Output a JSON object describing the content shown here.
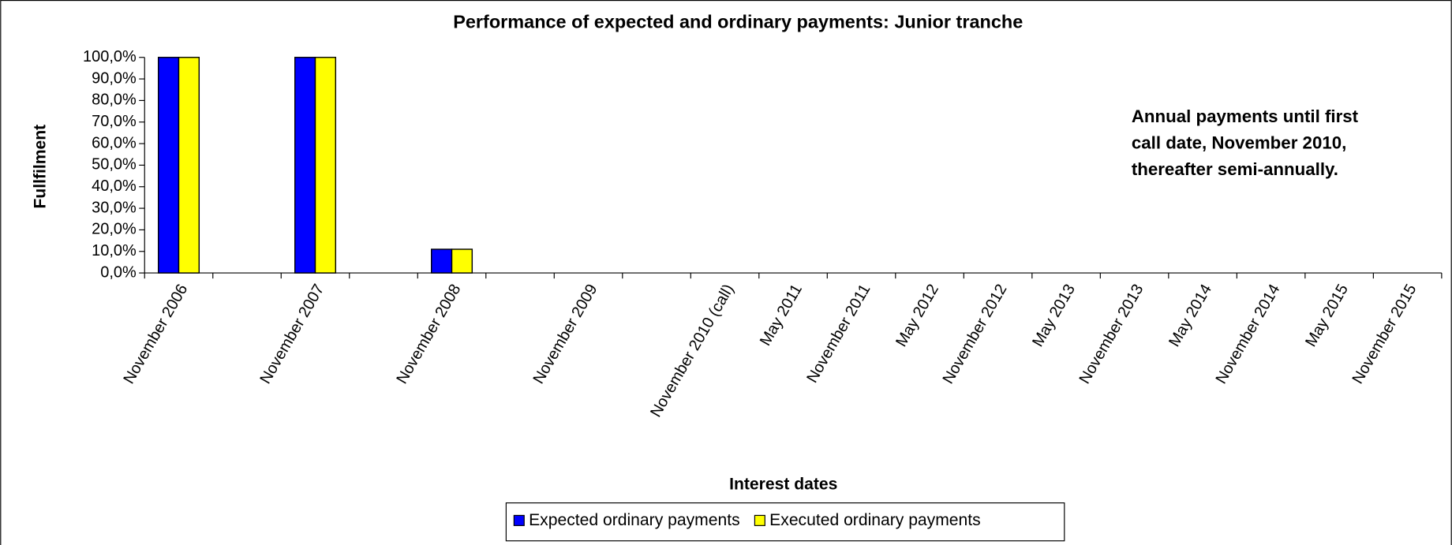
{
  "chart_data": {
    "type": "bar",
    "title": "Performance of expected and ordinary payments: Junior tranche",
    "x_label": "Interest dates",
    "y_label": "Fullfilment",
    "annotation": [
      "Annual payments until first",
      "call date, November 2010,",
      "thereafter semi-annually."
    ],
    "categories": [
      "November 2006",
      null,
      "November 2007",
      null,
      "November 2008",
      null,
      "November 2009",
      null,
      "November 2010 (call)",
      "May 2011",
      "November 2011",
      "May 2012",
      "November 2012",
      "May 2013",
      "November 2013",
      "May 2014",
      "November 2014",
      "May 2015",
      "November 2015"
    ],
    "series": [
      {
        "name": "Expected ordinary payments",
        "color": "#0000ff",
        "values": [
          100,
          null,
          100,
          null,
          11,
          null,
          null,
          null,
          null,
          null,
          null,
          null,
          null,
          null,
          null,
          null,
          null,
          null,
          null
        ]
      },
      {
        "name": "Executed ordinary payments",
        "color": "#ffff00",
        "values": [
          100,
          null,
          100,
          null,
          11,
          null,
          null,
          null,
          null,
          null,
          null,
          null,
          null,
          null,
          null,
          null,
          null,
          null,
          null
        ]
      }
    ],
    "ylim": [
      0,
      100
    ],
    "yticks": [
      {
        "value": 0,
        "label": "0,0%"
      },
      {
        "value": 10,
        "label": "10,0%"
      },
      {
        "value": 20,
        "label": "20,0%"
      },
      {
        "value": 30,
        "label": "30,0%"
      },
      {
        "value": 40,
        "label": "40,0%"
      },
      {
        "value": 50,
        "label": "50,0%"
      },
      {
        "value": 60,
        "label": "60,0%"
      },
      {
        "value": 70,
        "label": "70,0%"
      },
      {
        "value": 80,
        "label": "80,0%"
      },
      {
        "value": 90,
        "label": "90,0%"
      },
      {
        "value": 100,
        "label": "100,0%"
      }
    ],
    "legend": "bottom"
  }
}
